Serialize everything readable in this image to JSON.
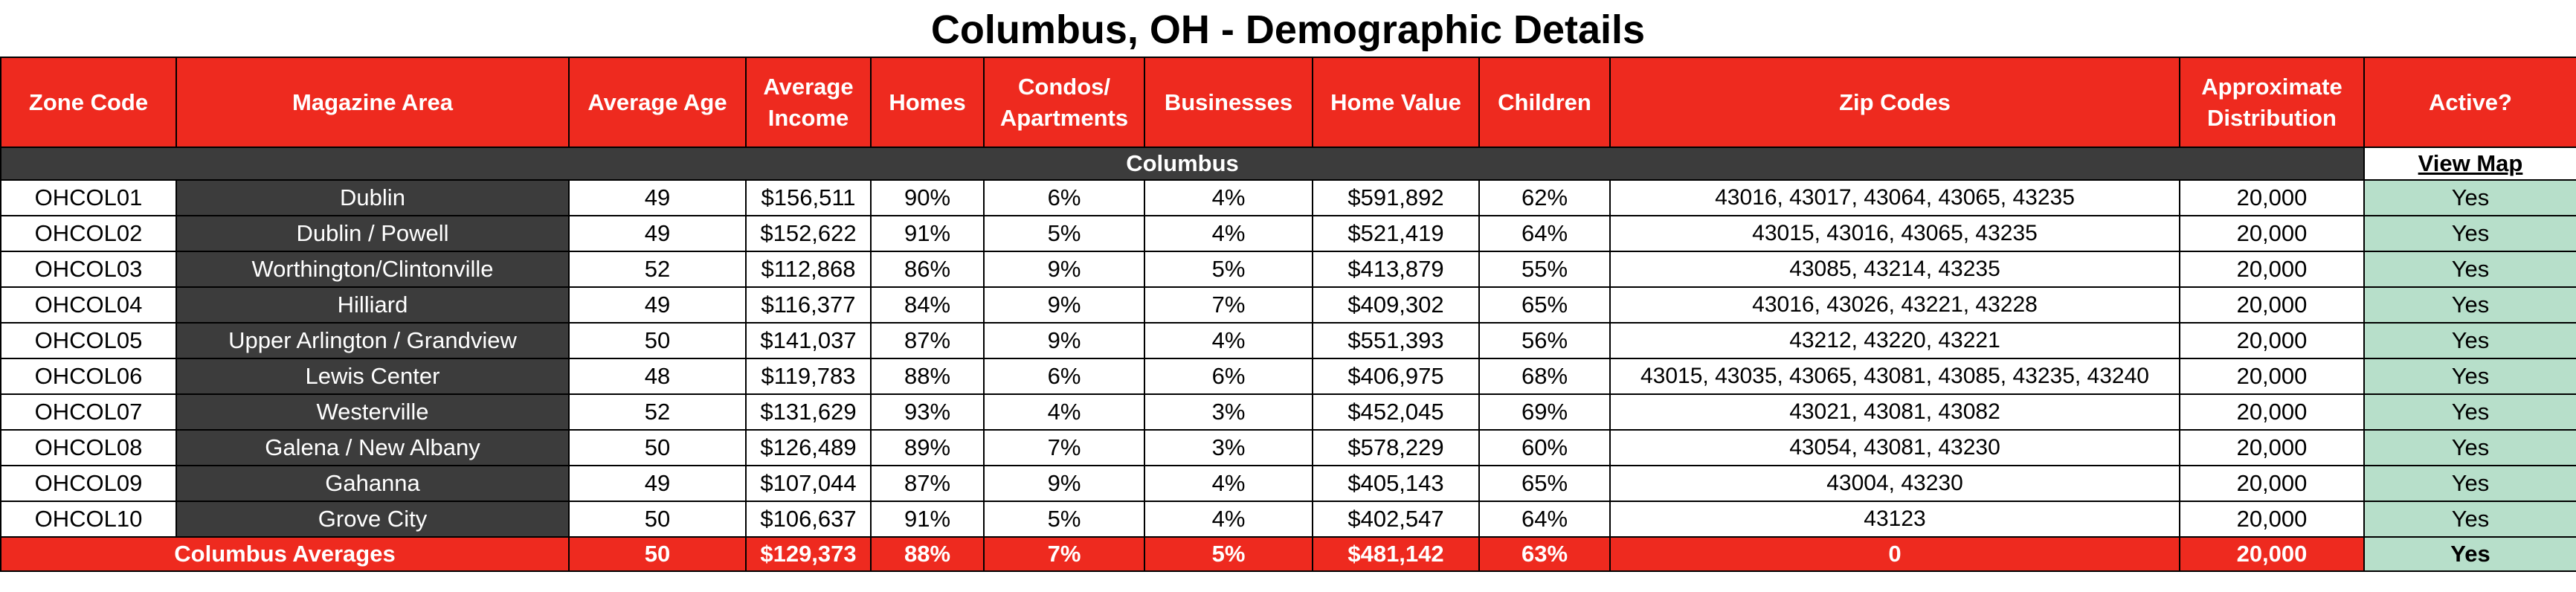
{
  "title": "Columbus, OH - Demographic Details",
  "columns": [
    "Zone Code",
    "Magazine Area",
    "Average Age",
    "Average Income",
    "Homes",
    "Condos/ Apartments",
    "Businesses",
    "Home Value",
    "Children",
    "Zip Codes",
    "Approximate Distribution",
    "Active?"
  ],
  "section": {
    "label": "Columbus",
    "link": "View Map"
  },
  "rows": [
    {
      "zone": "OHCOL01",
      "area": "Dublin",
      "age": "49",
      "income": "$156,511",
      "homes": "90%",
      "condos": "6%",
      "businesses": "4%",
      "home_value": "$591,892",
      "children": "62%",
      "zips": "43016, 43017, 43064, 43065, 43235",
      "distribution": "20,000",
      "active": "Yes"
    },
    {
      "zone": "OHCOL02",
      "area": "Dublin / Powell",
      "age": "49",
      "income": "$152,622",
      "homes": "91%",
      "condos": "5%",
      "businesses": "4%",
      "home_value": "$521,419",
      "children": "64%",
      "zips": "43015, 43016, 43065, 43235",
      "distribution": "20,000",
      "active": "Yes"
    },
    {
      "zone": "OHCOL03",
      "area": "Worthington/Clintonville",
      "age": "52",
      "income": "$112,868",
      "homes": "86%",
      "condos": "9%",
      "businesses": "5%",
      "home_value": "$413,879",
      "children": "55%",
      "zips": "43085, 43214, 43235",
      "distribution": "20,000",
      "active": "Yes"
    },
    {
      "zone": "OHCOL04",
      "area": "Hilliard",
      "age": "49",
      "income": "$116,377",
      "homes": "84%",
      "condos": "9%",
      "businesses": "7%",
      "home_value": "$409,302",
      "children": "65%",
      "zips": "43016, 43026, 43221, 43228",
      "distribution": "20,000",
      "active": "Yes"
    },
    {
      "zone": "OHCOL05",
      "area": "Upper Arlington / Grandview",
      "age": "50",
      "income": "$141,037",
      "homes": "87%",
      "condos": "9%",
      "businesses": "4%",
      "home_value": "$551,393",
      "children": "56%",
      "zips": "43212, 43220, 43221",
      "distribution": "20,000",
      "active": "Yes"
    },
    {
      "zone": "OHCOL06",
      "area": "Lewis Center",
      "age": "48",
      "income": "$119,783",
      "homes": "88%",
      "condos": "6%",
      "businesses": "6%",
      "home_value": "$406,975",
      "children": "68%",
      "zips": "43015, 43035, 43065, 43081, 43085, 43235, 43240",
      "distribution": "20,000",
      "active": "Yes"
    },
    {
      "zone": "OHCOL07",
      "area": "Westerville",
      "age": "52",
      "income": "$131,629",
      "homes": "93%",
      "condos": "4%",
      "businesses": "3%",
      "home_value": "$452,045",
      "children": "69%",
      "zips": "43021, 43081, 43082",
      "distribution": "20,000",
      "active": "Yes"
    },
    {
      "zone": "OHCOL08",
      "area": "Galena / New Albany",
      "age": "50",
      "income": "$126,489",
      "homes": "89%",
      "condos": "7%",
      "businesses": "3%",
      "home_value": "$578,229",
      "children": "60%",
      "zips": "43054, 43081, 43230",
      "distribution": "20,000",
      "active": "Yes"
    },
    {
      "zone": "OHCOL09",
      "area": "Gahanna",
      "age": "49",
      "income": "$107,044",
      "homes": "87%",
      "condos": "9%",
      "businesses": "4%",
      "home_value": "$405,143",
      "children": "65%",
      "zips": "43004, 43230",
      "distribution": "20,000",
      "active": "Yes"
    },
    {
      "zone": "OHCOL10",
      "area": "Grove City",
      "age": "50",
      "income": "$106,637",
      "homes": "91%",
      "condos": "5%",
      "businesses": "4%",
      "home_value": "$402,547",
      "children": "64%",
      "zips": "43123",
      "distribution": "20,000",
      "active": "Yes"
    }
  ],
  "averages": {
    "label": "Columbus Averages",
    "age": "50",
    "income": "$129,373",
    "homes": "88%",
    "condos": "7%",
    "businesses": "5%",
    "home_value": "$481,142",
    "children": "63%",
    "zips": "0",
    "distribution": "20,000",
    "active": "Yes"
  }
}
